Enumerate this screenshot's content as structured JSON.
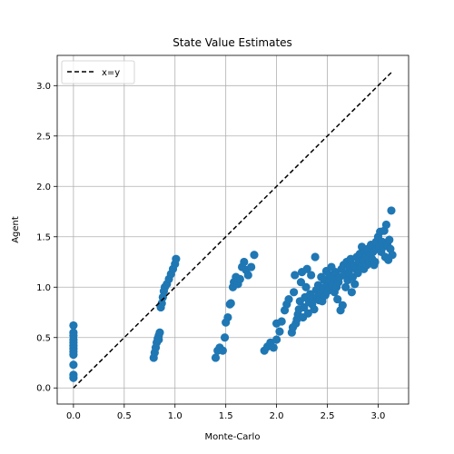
{
  "chart_data": {
    "type": "scatter",
    "title": "State Value Estimates",
    "xlabel": "Monte-Carlo",
    "ylabel": "Agent",
    "xlim": [
      -0.16,
      3.3
    ],
    "ylim": [
      -0.16,
      3.3
    ],
    "xticks": [
      0.0,
      0.5,
      1.0,
      1.5,
      2.0,
      2.5,
      3.0
    ],
    "yticks": [
      0.0,
      0.5,
      1.0,
      1.5,
      2.0,
      2.5,
      3.0
    ],
    "tick_labels": [
      "0.0",
      "0.5",
      "1.0",
      "1.5",
      "2.0",
      "2.5",
      "3.0"
    ],
    "grid": true,
    "legend_position": "top-left",
    "line_series": {
      "name": "x=y",
      "style": "dashed",
      "color": "#000000",
      "x": [
        0.0,
        3.14
      ],
      "y": [
        0.0,
        3.14
      ]
    },
    "point_color": "#1f77b4",
    "points": [
      [
        0.0,
        0.62
      ],
      [
        0.0,
        0.55
      ],
      [
        0.0,
        0.52
      ],
      [
        0.0,
        0.48
      ],
      [
        0.0,
        0.45
      ],
      [
        0.0,
        0.42
      ],
      [
        0.0,
        0.39
      ],
      [
        0.0,
        0.36
      ],
      [
        0.0,
        0.33
      ],
      [
        0.0,
        0.23
      ],
      [
        0.0,
        0.13
      ],
      [
        0.0,
        0.1
      ],
      [
        0.79,
        0.3
      ],
      [
        0.8,
        0.35
      ],
      [
        0.81,
        0.4
      ],
      [
        0.82,
        0.45
      ],
      [
        0.83,
        0.49
      ],
      [
        0.84,
        0.52
      ],
      [
        0.85,
        0.55
      ],
      [
        0.84,
        0.48
      ],
      [
        0.86,
        0.8
      ],
      [
        0.87,
        0.84
      ],
      [
        0.88,
        0.9
      ],
      [
        0.89,
        0.96
      ],
      [
        0.9,
        1.0
      ],
      [
        0.92,
        1.03
      ],
      [
        0.94,
        1.08
      ],
      [
        0.96,
        1.13
      ],
      [
        0.98,
        1.18
      ],
      [
        1.0,
        1.23
      ],
      [
        1.01,
        1.28
      ],
      [
        1.4,
        0.3
      ],
      [
        1.42,
        0.37
      ],
      [
        1.44,
        0.4
      ],
      [
        1.47,
        0.37
      ],
      [
        1.49,
        0.5
      ],
      [
        1.5,
        0.65
      ],
      [
        1.52,
        0.7
      ],
      [
        1.54,
        0.83
      ],
      [
        1.55,
        0.84
      ],
      [
        1.57,
        1.0
      ],
      [
        1.58,
        1.05
      ],
      [
        1.6,
        1.1
      ],
      [
        1.62,
        1.03
      ],
      [
        1.64,
        1.08
      ],
      [
        1.66,
        1.2
      ],
      [
        1.68,
        1.25
      ],
      [
        1.7,
        1.17
      ],
      [
        1.72,
        1.12
      ],
      [
        1.75,
        1.2
      ],
      [
        1.78,
        1.32
      ],
      [
        1.88,
        0.37
      ],
      [
        1.91,
        0.41
      ],
      [
        1.94,
        0.45
      ],
      [
        1.97,
        0.4
      ],
      [
        2.0,
        0.48
      ],
      [
        2.0,
        0.64
      ],
      [
        2.03,
        0.56
      ],
      [
        2.05,
        0.66
      ],
      [
        2.08,
        0.77
      ],
      [
        2.1,
        0.83
      ],
      [
        2.12,
        0.88
      ],
      [
        2.15,
        0.55
      ],
      [
        2.16,
        0.6
      ],
      [
        2.17,
        0.95
      ],
      [
        2.18,
        1.12
      ],
      [
        2.19,
        0.64
      ],
      [
        2.2,
        0.68
      ],
      [
        2.21,
        0.73
      ],
      [
        2.22,
        0.78
      ],
      [
        2.23,
        0.86
      ],
      [
        2.24,
        1.05
      ],
      [
        2.25,
        1.15
      ],
      [
        2.26,
        0.7
      ],
      [
        2.27,
        0.8
      ],
      [
        2.28,
        0.9
      ],
      [
        2.29,
        1.0
      ],
      [
        2.3,
        1.18
      ],
      [
        2.31,
        0.74
      ],
      [
        2.32,
        0.85
      ],
      [
        2.33,
        0.93
      ],
      [
        2.34,
        1.12
      ],
      [
        2.35,
        0.83
      ],
      [
        2.36,
        0.88
      ],
      [
        2.37,
        0.78
      ],
      [
        2.38,
        1.3
      ],
      [
        2.39,
        0.97
      ],
      [
        2.4,
        0.9
      ],
      [
        2.41,
        1.02
      ],
      [
        2.42,
        0.87
      ],
      [
        2.43,
        0.94
      ],
      [
        2.44,
        1.1
      ],
      [
        2.45,
        0.86
      ],
      [
        2.46,
        0.99
      ],
      [
        2.47,
        1.07
      ],
      [
        2.48,
        0.92
      ],
      [
        2.49,
        1.16
      ],
      [
        2.5,
        0.96
      ],
      [
        2.51,
        1.04
      ],
      [
        2.52,
        1.12
      ],
      [
        2.53,
        0.99
      ],
      [
        2.54,
        1.2
      ],
      [
        2.55,
        1.02
      ],
      [
        2.56,
        1.09
      ],
      [
        2.57,
        0.95
      ],
      [
        2.58,
        1.15
      ],
      [
        2.59,
        1.0
      ],
      [
        2.6,
        0.88
      ],
      [
        2.61,
        1.05
      ],
      [
        2.62,
        1.1
      ],
      [
        2.63,
        0.77
      ],
      [
        2.64,
        1.18
      ],
      [
        2.65,
        0.82
      ],
      [
        2.66,
        1.22
      ],
      [
        2.67,
        1.12
      ],
      [
        2.68,
        1.0
      ],
      [
        2.69,
        1.25
      ],
      [
        2.7,
        1.07
      ],
      [
        2.71,
        1.15
      ],
      [
        2.72,
        1.2
      ],
      [
        2.73,
        1.28
      ],
      [
        2.74,
        0.95
      ],
      [
        2.75,
        1.1
      ],
      [
        2.76,
        1.22
      ],
      [
        2.77,
        1.03
      ],
      [
        2.78,
        1.18
      ],
      [
        2.79,
        1.3
      ],
      [
        2.8,
        1.14
      ],
      [
        2.81,
        1.25
      ],
      [
        2.82,
        1.33
      ],
      [
        2.83,
        1.2
      ],
      [
        2.84,
        1.4
      ],
      [
        2.85,
        1.27
      ],
      [
        2.86,
        1.18
      ],
      [
        2.87,
        1.35
      ],
      [
        2.88,
        1.3
      ],
      [
        2.89,
        1.22
      ],
      [
        2.9,
        1.38
      ],
      [
        2.91,
        1.25
      ],
      [
        2.92,
        1.32
      ],
      [
        2.93,
        1.42
      ],
      [
        2.94,
        1.28
      ],
      [
        2.95,
        1.35
      ],
      [
        2.96,
        1.22
      ],
      [
        2.97,
        1.25
      ],
      [
        2.98,
        1.45
      ],
      [
        2.99,
        1.38
      ],
      [
        3.0,
        1.5
      ],
      [
        3.01,
        1.4
      ],
      [
        3.02,
        1.55
      ],
      [
        3.03,
        1.35
      ],
      [
        3.04,
        1.45
      ],
      [
        3.05,
        1.4
      ],
      [
        3.06,
        1.56
      ],
      [
        3.07,
        1.3
      ],
      [
        3.08,
        1.62
      ],
      [
        3.09,
        1.42
      ],
      [
        3.1,
        1.27
      ],
      [
        3.11,
        1.47
      ],
      [
        3.12,
        1.38
      ],
      [
        3.13,
        1.76
      ],
      [
        3.14,
        1.32
      ]
    ]
  }
}
